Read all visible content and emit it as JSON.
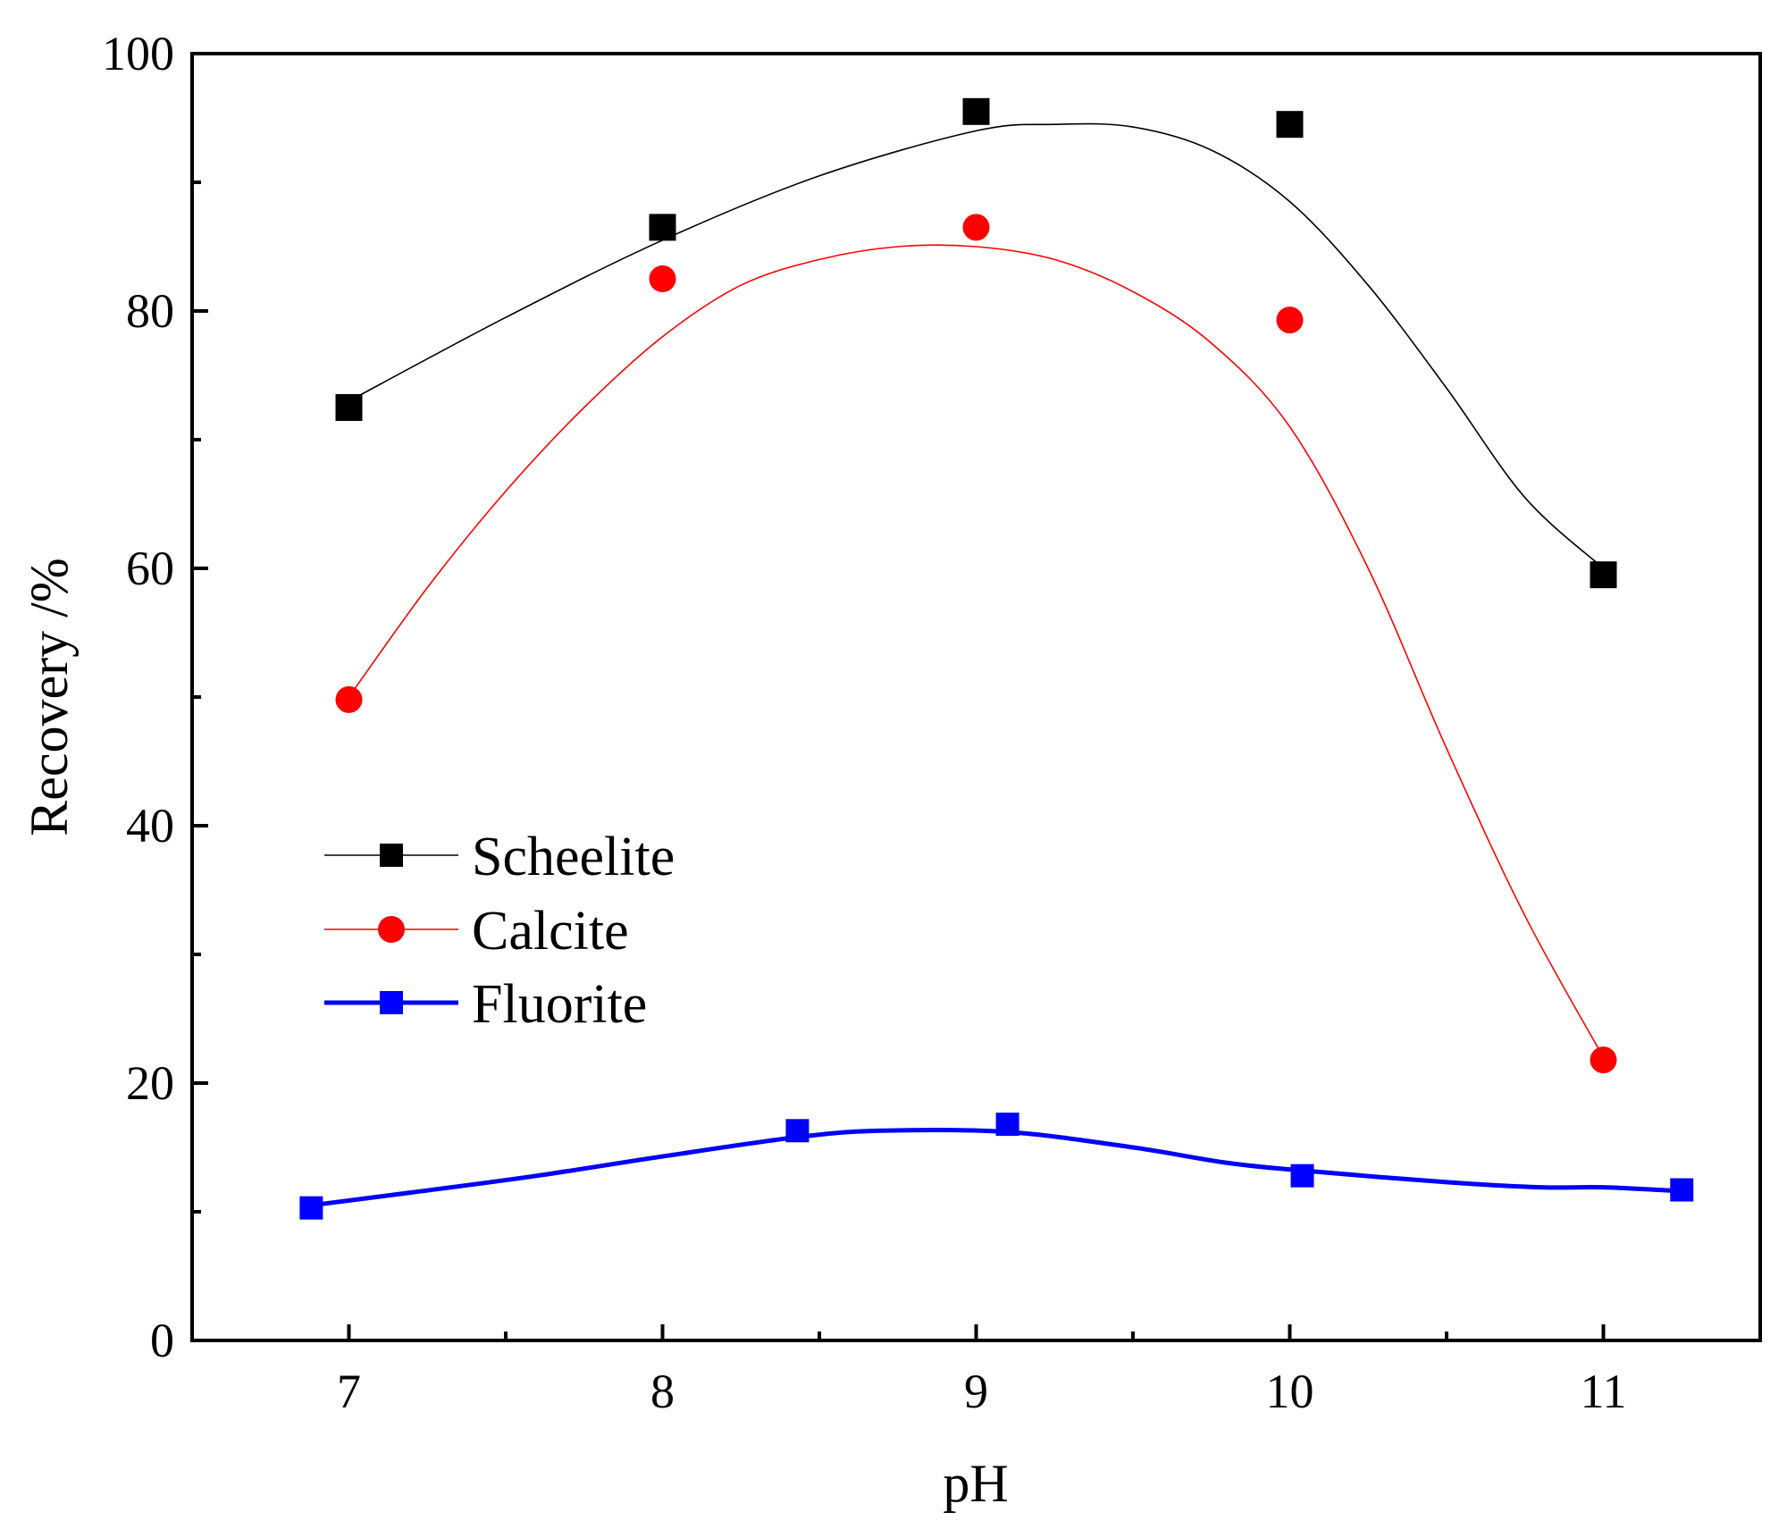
{
  "chart_data": {
    "type": "scatter",
    "title": "",
    "xlabel": "pH",
    "ylabel": "Recovery /%",
    "xlim": [
      6.5,
      11.5
    ],
    "ylim": [
      0,
      100
    ],
    "xticks": [
      7,
      8,
      9,
      10,
      11
    ],
    "xtick_labels": [
      "7",
      "8",
      "9",
      "10",
      "11"
    ],
    "yticks": [
      0,
      20,
      40,
      60,
      80,
      100
    ],
    "ytick_labels": [
      "0",
      "20",
      "40",
      "60",
      "80",
      "100"
    ],
    "grid": false,
    "legend_position": "center-left",
    "series": [
      {
        "name": "Scheelite",
        "marker": "square",
        "color": "#000000",
        "x": [
          7,
          8,
          9,
          10,
          11
        ],
        "y": [
          72.5,
          86.5,
          95.5,
          94.5,
          59.5
        ],
        "curve": {
          "x": [
            7,
            7.5,
            8,
            8.5,
            9,
            9.25,
            9.5,
            9.75,
            10,
            10.25,
            10.5,
            10.75,
            11
          ],
          "y": [
            73,
            79.5,
            85.5,
            90.5,
            94,
            94.5,
            94.3,
            92.5,
            88.5,
            82,
            74,
            65.5,
            60
          ]
        }
      },
      {
        "name": "Calcite",
        "marker": "circle",
        "color": "#ff0000",
        "x": [
          7,
          8,
          9,
          10,
          11
        ],
        "y": [
          49.8,
          82.5,
          86.5,
          79.3,
          21.8
        ],
        "curve": {
          "x": [
            7,
            7.25,
            7.5,
            7.75,
            8,
            8.25,
            8.5,
            8.75,
            9,
            9.25,
            9.5,
            9.75,
            10,
            10.25,
            10.5,
            10.75,
            11
          ],
          "y": [
            50,
            58.5,
            66,
            72.5,
            78,
            82,
            84,
            85,
            85,
            84,
            81.5,
            77.5,
            71,
            60,
            46,
            33,
            22
          ]
        }
      },
      {
        "name": "Fluorite",
        "marker": "square",
        "color": "#0000ff",
        "x": [
          6.88,
          8.43,
          9.1,
          10.04,
          11.25
        ],
        "y": [
          10.3,
          16.3,
          16.8,
          12.8,
          11.7
        ],
        "curve": {
          "x": [
            6.88,
            7.2,
            7.6,
            8,
            8.43,
            8.7,
            9.1,
            9.5,
            9.8,
            10.04,
            10.5,
            10.8,
            11,
            11.25
          ],
          "y": [
            10.5,
            11.5,
            12.8,
            14.3,
            15.8,
            16.3,
            16.2,
            15,
            13.8,
            13.2,
            12.3,
            11.9,
            11.9,
            11.6
          ]
        }
      }
    ]
  }
}
